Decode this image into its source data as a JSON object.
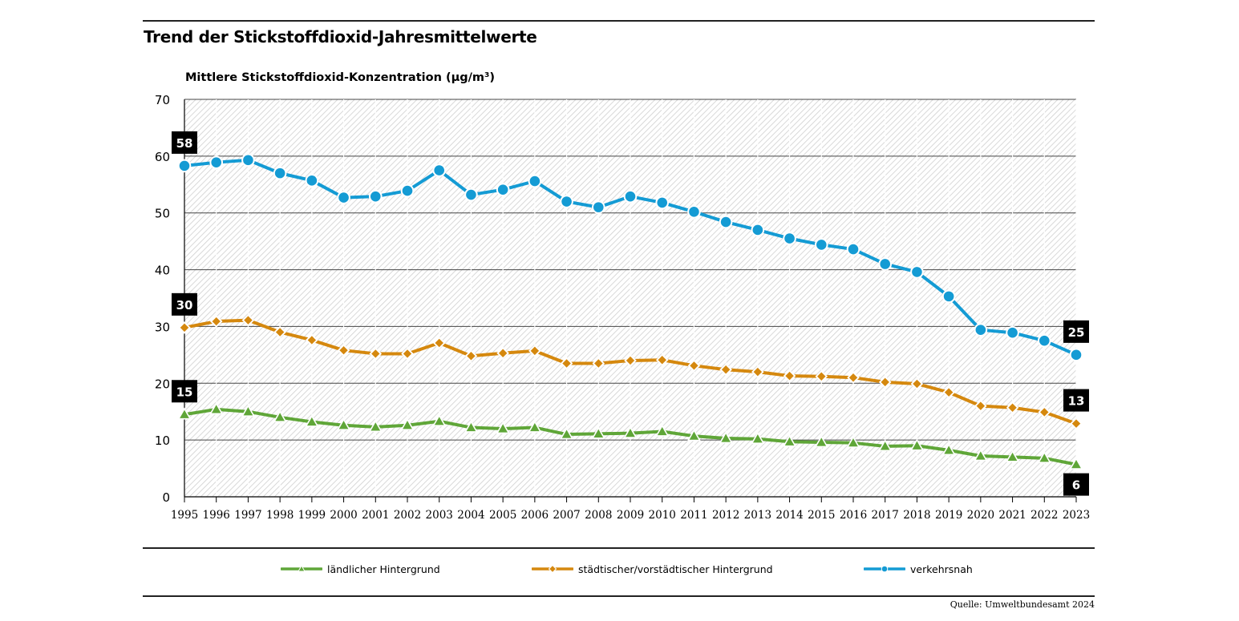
{
  "title": "Trend der Stickstoffdioxid-Jahresmittelwerte",
  "source": "Quelle: Umweltbundesamt 2024",
  "colors": {
    "laendlich": "#5fa638",
    "staedtisch": "#d5880e",
    "verkehr": "#149bd4",
    "grid": "#444444",
    "hatch": "#cfcfcf",
    "badge": "#000000"
  },
  "chart_data": {
    "type": "line",
    "title": "Trend der Stickstoffdioxid-Jahresmittelwerte",
    "xlabel": "",
    "ylabel": "Mittlere Stickstoffdioxid-Konzentration (µg/m³)",
    "ylim": [
      0,
      70
    ],
    "yticks": [
      0,
      10,
      20,
      30,
      40,
      50,
      60,
      70
    ],
    "grid": true,
    "legend_position": "bottom",
    "x": [
      1995,
      1996,
      1997,
      1998,
      1999,
      2000,
      2001,
      2002,
      2003,
      2004,
      2005,
      2006,
      2007,
      2008,
      2009,
      2010,
      2011,
      2012,
      2013,
      2014,
      2015,
      2016,
      2017,
      2018,
      2019,
      2020,
      2021,
      2022,
      2023
    ],
    "series": [
      {
        "name": "ländlicher Hintergrund",
        "marker": "triangle",
        "color": "#5fa638",
        "values": [
          14.5,
          15.4,
          15.0,
          14.0,
          13.2,
          12.6,
          12.3,
          12.6,
          13.3,
          12.2,
          12.0,
          12.2,
          11.0,
          11.1,
          11.2,
          11.5,
          10.7,
          10.3,
          10.2,
          9.7,
          9.6,
          9.5,
          8.9,
          9.0,
          8.2,
          7.2,
          7.0,
          6.8,
          5.7
        ],
        "start_label": "15",
        "end_label": "6"
      },
      {
        "name": "städtischer/vorstädtischer Hintergrund",
        "marker": "diamond",
        "color": "#d5880e",
        "values": [
          29.8,
          30.9,
          31.1,
          29.0,
          27.6,
          25.8,
          25.2,
          25.2,
          27.1,
          24.8,
          25.3,
          25.7,
          23.5,
          23.5,
          24.0,
          24.1,
          23.1,
          22.4,
          22.0,
          21.3,
          21.2,
          21.0,
          20.2,
          19.9,
          18.4,
          16.0,
          15.7,
          14.9,
          12.9
        ],
        "start_label": "30",
        "end_label": "13"
      },
      {
        "name": "verkehrsnah",
        "marker": "circle",
        "color": "#149bd4",
        "values": [
          58.3,
          58.9,
          59.3,
          57.0,
          55.7,
          52.7,
          52.9,
          53.9,
          57.5,
          53.2,
          54.1,
          55.6,
          52.0,
          51.0,
          52.9,
          51.8,
          50.2,
          48.4,
          47.0,
          45.5,
          44.4,
          43.6,
          41.0,
          39.6,
          35.3,
          29.4,
          28.9,
          27.5,
          25.0
        ],
        "start_label": "58",
        "end_label": "25"
      }
    ]
  }
}
